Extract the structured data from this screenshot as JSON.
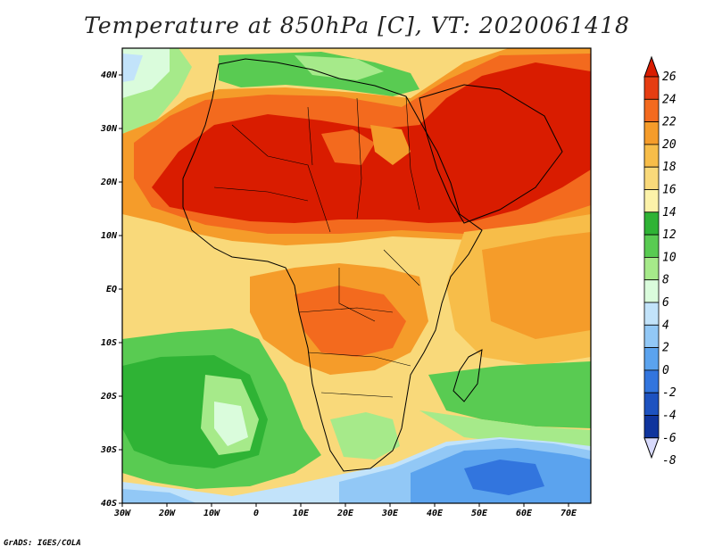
{
  "title": "Temperature at 850hPa [C], VT: 2020061418",
  "credit": "GrADS: IGES/COLA",
  "map": {
    "lon_labels": [
      "30W",
      "20W",
      "10W",
      "0",
      "10E",
      "20E",
      "30E",
      "40E",
      "50E",
      "60E",
      "70E"
    ],
    "lat_labels": [
      "40N",
      "30N",
      "20N",
      "10N",
      "EQ",
      "10S",
      "20S",
      "30S",
      "40S"
    ]
  },
  "colorbar": {
    "labels": [
      "26",
      "24",
      "22",
      "20",
      "18",
      "16",
      "14",
      "12",
      "10",
      "8",
      "6",
      "4",
      "2",
      "0",
      "-2",
      "-4",
      "-6",
      "-8"
    ],
    "colors": [
      "#d91c00",
      "#e63d12",
      "#f36a1e",
      "#f59c2a",
      "#f7bd49",
      "#f9d97a",
      "#fcf2a9",
      "#2fb335",
      "#59cb52",
      "#a6ea8a",
      "#dafcdc",
      "#c2e3fa",
      "#92c8f6",
      "#5ba3ee",
      "#3275de",
      "#1d52c0",
      "#0f349d",
      "#071a6c"
    ]
  }
}
